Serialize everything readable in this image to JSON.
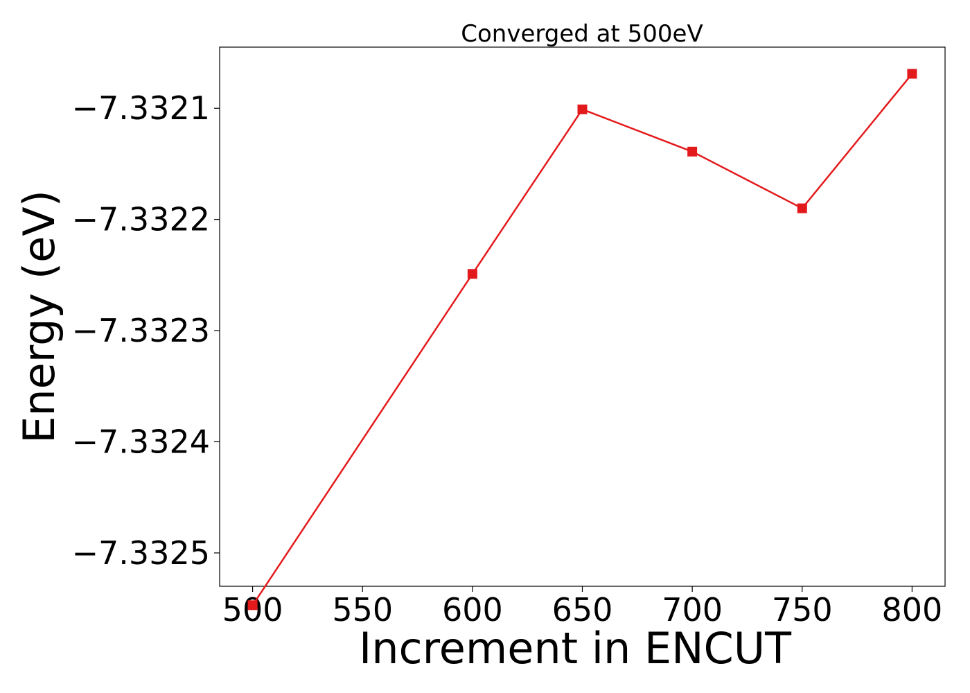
{
  "chart_data": {
    "type": "line",
    "title": "Converged at 500eV",
    "xlabel": "Increment in ENCUT",
    "ylabel": "Energy (eV)",
    "x": [
      500,
      600,
      650,
      700,
      750,
      800
    ],
    "series": [
      {
        "values": [
          -7.332547,
          -7.332249,
          -7.332101,
          -7.332139,
          -7.33219,
          -7.332069
        ],
        "color": "#e31a1c",
        "marker": "square"
      }
    ],
    "xlim": [
      485,
      815
    ],
    "ylim": [
      -7.33253,
      -7.332045
    ],
    "xticks": [
      500,
      550,
      600,
      650,
      700,
      750,
      800
    ],
    "xtick_labels": [
      "500",
      "550",
      "600",
      "650",
      "700",
      "750",
      "800"
    ],
    "yticks": [
      -7.3321,
      -7.3322,
      -7.3323,
      -7.3324,
      -7.3325
    ],
    "ytick_labels": [
      "−7.3321",
      "−7.3322",
      "−7.3323",
      "−7.3324",
      "−7.3325"
    ],
    "grid": false,
    "legend": "none"
  }
}
